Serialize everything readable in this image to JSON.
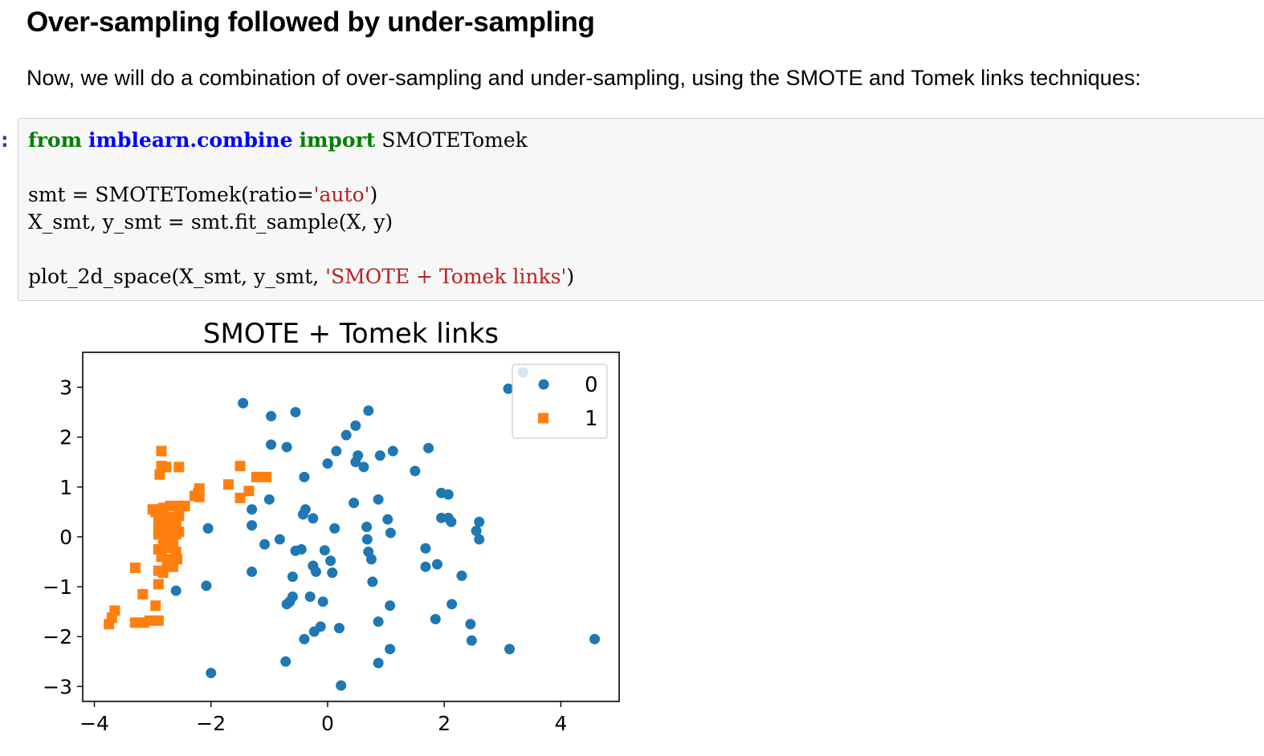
{
  "section": {
    "heading": "Over-sampling followed by under-sampling",
    "intro": "Now, we will do a combination of over-sampling and under-sampling, using the SMOTE and Tomek links techniques:"
  },
  "cell": {
    "prompt": ":",
    "code": {
      "line1": {
        "kw_from": "from",
        "module": "imblearn.combine",
        "kw_import": "import",
        "name": "SMOTETomek"
      },
      "line2": {
        "pre": "smt = SMOTETomek(ratio=",
        "str": "'auto'",
        "post": ")"
      },
      "line3": {
        "text": "X_smt, y_smt = smt.fit_sample(X, y)"
      },
      "line4": {
        "pre": "plot_2d_space(X_smt, y_smt, ",
        "str": "'SMOTE + Tomek links'",
        "post": ")"
      }
    }
  },
  "chart_data": {
    "type": "scatter",
    "title": "SMOTE + Tomek links",
    "xlabel": "",
    "ylabel": "",
    "xlim": [
      -4.2,
      5.0
    ],
    "ylim": [
      -3.3,
      3.7
    ],
    "xticks": [
      -4,
      -2,
      0,
      2,
      4
    ],
    "yticks": [
      -3,
      -2,
      -1,
      0,
      1,
      2,
      3
    ],
    "xtick_labels": [
      "−4",
      "−2",
      "0",
      "2",
      "4"
    ],
    "ytick_labels": [
      "−3",
      "−2",
      "−1",
      "0",
      "1",
      "2",
      "3"
    ],
    "grid": false,
    "legend": "top-right",
    "series": [
      {
        "name": "0",
        "marker": "circle",
        "color": "#1f77b4",
        "points": [
          [
            -1.45,
            2.68
          ],
          [
            -0.97,
            2.42
          ],
          [
            -0.55,
            2.5
          ],
          [
            0.7,
            2.53
          ],
          [
            0.48,
            2.23
          ],
          [
            0.32,
            2.04
          ],
          [
            -0.97,
            1.85
          ],
          [
            -0.7,
            1.8
          ],
          [
            0.15,
            1.72
          ],
          [
            0.52,
            1.63
          ],
          [
            0.9,
            1.63
          ],
          [
            1.12,
            1.72
          ],
          [
            1.73,
            1.78
          ],
          [
            0.0,
            1.47
          ],
          [
            0.48,
            1.5
          ],
          [
            0.62,
            1.4
          ],
          [
            1.5,
            1.32
          ],
          [
            -0.4,
            1.2
          ],
          [
            -1.0,
            0.75
          ],
          [
            0.45,
            0.68
          ],
          [
            0.87,
            0.75
          ],
          [
            1.95,
            0.88
          ],
          [
            2.07,
            0.85
          ],
          [
            -1.3,
            0.55
          ],
          [
            -0.38,
            0.55
          ],
          [
            -0.42,
            0.45
          ],
          [
            -0.25,
            0.37
          ],
          [
            1.03,
            0.35
          ],
          [
            1.95,
            0.38
          ],
          [
            2.07,
            0.38
          ],
          [
            2.12,
            0.3
          ],
          [
            2.6,
            0.3
          ],
          [
            -2.05,
            0.17
          ],
          [
            -1.3,
            0.23
          ],
          [
            0.12,
            0.17
          ],
          [
            0.67,
            0.2
          ],
          [
            1.08,
            0.08
          ],
          [
            2.55,
            0.12
          ],
          [
            -1.08,
            -0.15
          ],
          [
            -0.82,
            -0.05
          ],
          [
            0.68,
            -0.05
          ],
          [
            2.6,
            -0.05
          ],
          [
            -0.55,
            -0.28
          ],
          [
            -0.45,
            -0.25
          ],
          [
            -0.05,
            -0.27
          ],
          [
            0.7,
            -0.3
          ],
          [
            0.75,
            -0.45
          ],
          [
            1.68,
            -0.23
          ],
          [
            0.05,
            -0.48
          ],
          [
            -0.25,
            -0.58
          ],
          [
            -0.2,
            -0.7
          ],
          [
            0.08,
            -0.72
          ],
          [
            -1.3,
            -0.7
          ],
          [
            -0.6,
            -0.8
          ],
          [
            1.68,
            -0.6
          ],
          [
            1.88,
            -0.55
          ],
          [
            2.3,
            -0.78
          ],
          [
            0.77,
            -0.9
          ],
          [
            -2.6,
            -1.08
          ],
          [
            -2.08,
            -0.98
          ],
          [
            -0.6,
            -1.2
          ],
          [
            -0.65,
            -1.3
          ],
          [
            -0.7,
            -1.35
          ],
          [
            -0.3,
            -1.2
          ],
          [
            -0.08,
            -1.3
          ],
          [
            1.07,
            -1.38
          ],
          [
            2.13,
            -1.35
          ],
          [
            0.87,
            -1.7
          ],
          [
            1.85,
            -1.65
          ],
          [
            2.45,
            -1.75
          ],
          [
            -0.12,
            -1.8
          ],
          [
            -0.23,
            -1.9
          ],
          [
            0.2,
            -1.83
          ],
          [
            -0.4,
            -2.05
          ],
          [
            2.47,
            -2.08
          ],
          [
            1.07,
            -2.25
          ],
          [
            3.12,
            -2.25
          ],
          [
            4.58,
            -2.05
          ],
          [
            -0.72,
            -2.5
          ],
          [
            0.87,
            -2.53
          ],
          [
            -2.0,
            -2.73
          ],
          [
            0.23,
            -2.98
          ]
        ]
      },
      {
        "name": "1",
        "marker": "square",
        "color": "#ff7f0e",
        "points": [
          [
            -2.85,
            1.72
          ],
          [
            -2.85,
            1.42
          ],
          [
            -2.77,
            1.4
          ],
          [
            -2.55,
            1.4
          ],
          [
            -2.88,
            1.25
          ],
          [
            -1.5,
            1.42
          ],
          [
            -1.7,
            1.05
          ],
          [
            -1.22,
            1.2
          ],
          [
            -1.05,
            1.2
          ],
          [
            -2.2,
            0.97
          ],
          [
            -2.22,
            0.88
          ],
          [
            -2.28,
            0.82
          ],
          [
            -2.2,
            0.8
          ],
          [
            -1.35,
            0.92
          ],
          [
            -1.5,
            0.78
          ],
          [
            -2.95,
            0.5
          ],
          [
            -2.82,
            0.58
          ],
          [
            -2.7,
            0.62
          ],
          [
            -2.55,
            0.62
          ],
          [
            -2.45,
            0.62
          ],
          [
            -3.0,
            0.55
          ],
          [
            -2.85,
            0.45
          ],
          [
            -2.7,
            0.4
          ],
          [
            -2.55,
            0.42
          ],
          [
            -2.9,
            0.35
          ],
          [
            -2.75,
            0.3
          ],
          [
            -2.6,
            0.28
          ],
          [
            -2.9,
            0.15
          ],
          [
            -2.8,
            0.15
          ],
          [
            -2.7,
            0.18
          ],
          [
            -2.6,
            0.15
          ],
          [
            -2.9,
            0.05
          ],
          [
            -2.75,
            0.0
          ],
          [
            -2.6,
            0.05
          ],
          [
            -2.55,
            0.1
          ],
          [
            -2.82,
            -0.1
          ],
          [
            -2.65,
            -0.12
          ],
          [
            -2.9,
            -0.25
          ],
          [
            -2.75,
            -0.22
          ],
          [
            -2.6,
            -0.3
          ],
          [
            -2.85,
            -0.4
          ],
          [
            -2.7,
            -0.45
          ],
          [
            -2.58,
            -0.45
          ],
          [
            -2.75,
            -0.6
          ],
          [
            -2.65,
            -0.6
          ],
          [
            -2.9,
            -0.68
          ],
          [
            -2.82,
            -0.72
          ],
          [
            -2.9,
            -0.95
          ],
          [
            -3.3,
            -0.62
          ],
          [
            -3.17,
            -1.15
          ],
          [
            -2.95,
            -1.38
          ],
          [
            -3.65,
            -1.48
          ],
          [
            -3.7,
            -1.62
          ],
          [
            -3.75,
            -1.75
          ],
          [
            -3.3,
            -1.72
          ],
          [
            -3.15,
            -1.72
          ],
          [
            -3.05,
            -1.68
          ],
          [
            -2.9,
            -1.68
          ]
        ]
      }
    ],
    "legend_background_points": [
      [
        3.35,
        3.3
      ],
      [
        3.1,
        2.97
      ]
    ]
  }
}
